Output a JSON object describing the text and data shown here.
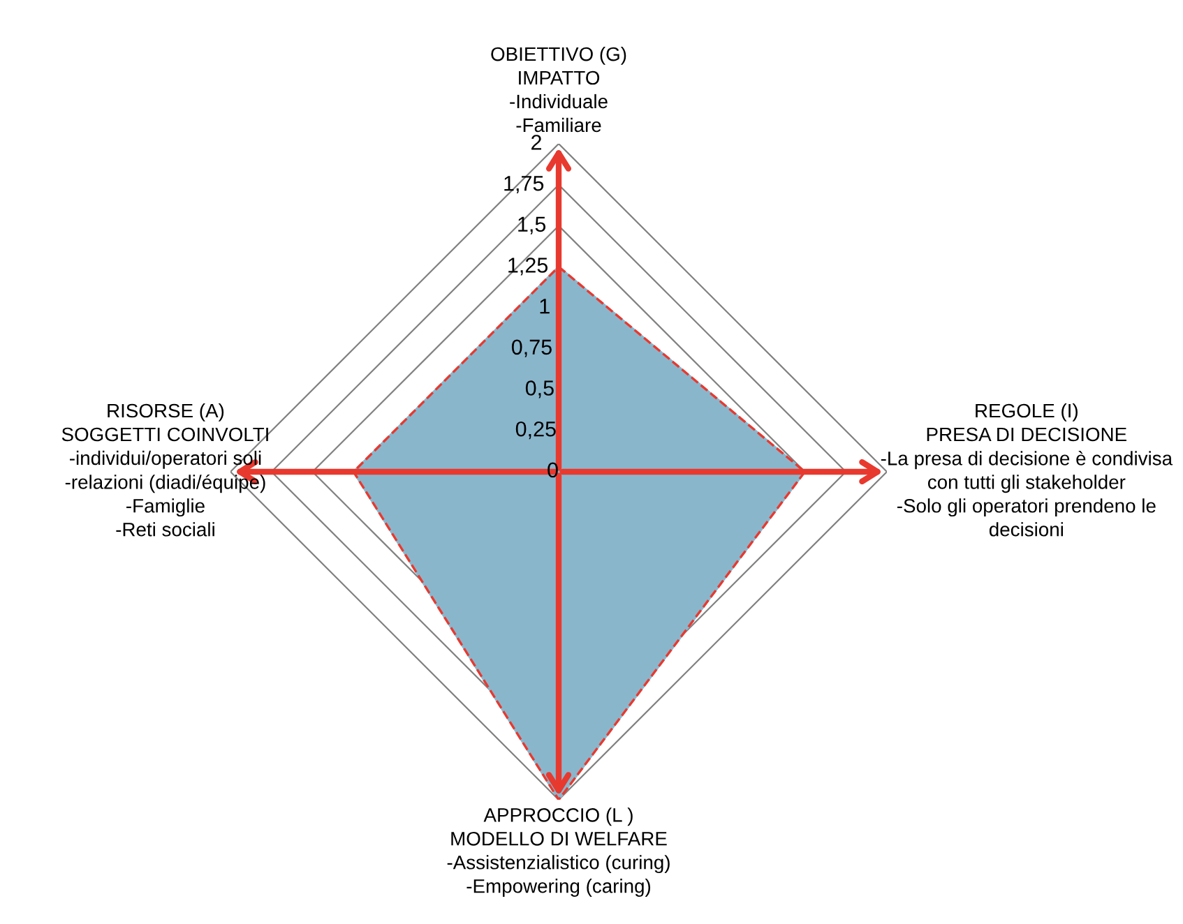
{
  "chart_data": {
    "type": "radar",
    "categories": [
      "OBIETTIVO (G)\nIMPATTO\n-Individuale\n-Familiare",
      "REGOLE (I)\nPRESA DI DECISIONE\n-La presa di decisione è condivisa\ncon tutti gli stakeholder\n-Solo gli operatori prendeno le\ndecisioni",
      "APPROCCIO (L )\nMODELLO DI WELFARE\n-Assistenzialistico (curing)\n-Empowering (caring)",
      "RISORSE (A)\nSOGGETTI COINVOLTI\n-individui/operatori soli\n-relazioni (diadi/équipe)\n-Famiglie\n-Reti sociali"
    ],
    "series": [
      {
        "color": "#8ab6cc",
        "values": [
          1.25,
          1.5,
          2,
          1.25
        ],
        "line_style": "dashed"
      }
    ],
    "ylim": [
      0,
      2
    ],
    "yticks": [
      0,
      {
        "value": 0.25,
        "label": "0,25"
      },
      {
        "value": 0.5,
        "label": "0,5"
      },
      {
        "value": 0.75,
        "label": "0,75"
      },
      1,
      {
        "value": 1.25,
        "label": "1,25"
      },
      {
        "value": 1.5,
        "label": "1,5"
      },
      {
        "value": 1.75,
        "label": "1,75"
      },
      2
    ],
    "grid": true,
    "marker": "none"
  }
}
